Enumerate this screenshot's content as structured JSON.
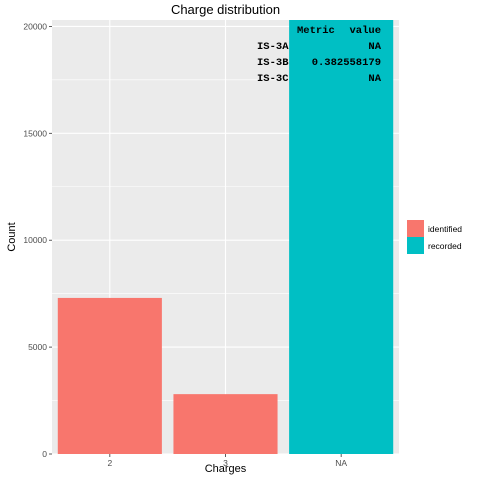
{
  "chart_data": {
    "type": "bar",
    "title": "Charge distribution",
    "xlabel": "Charges",
    "ylabel": "Count",
    "categories": [
      "2",
      "3",
      "NA"
    ],
    "ylim": [
      0,
      20300
    ],
    "yticks": [
      0,
      5000,
      10000,
      15000,
      20000
    ],
    "yticklabels": [
      "0",
      "5000",
      "10000",
      "15000",
      "20000"
    ],
    "bars": [
      {
        "category": "2",
        "value": 7300,
        "group": "identified"
      },
      {
        "category": "3",
        "value": 2800,
        "group": "identified"
      },
      {
        "category": "NA",
        "value": 20300,
        "group": "recorded"
      }
    ],
    "legend": {
      "position": "right",
      "items": [
        {
          "label": "identified",
          "color": "#F8766D"
        },
        {
          "label": "recorded",
          "color": "#00BFC4"
        }
      ]
    },
    "annotation_table": {
      "header": [
        "Metric",
        "value"
      ],
      "rows": [
        [
          "IS-3A",
          "NA"
        ],
        [
          "IS-3B",
          "0.382558179"
        ],
        [
          "IS-3C",
          "NA"
        ]
      ]
    },
    "panel_background": "#EBEBEB",
    "grid": true
  }
}
